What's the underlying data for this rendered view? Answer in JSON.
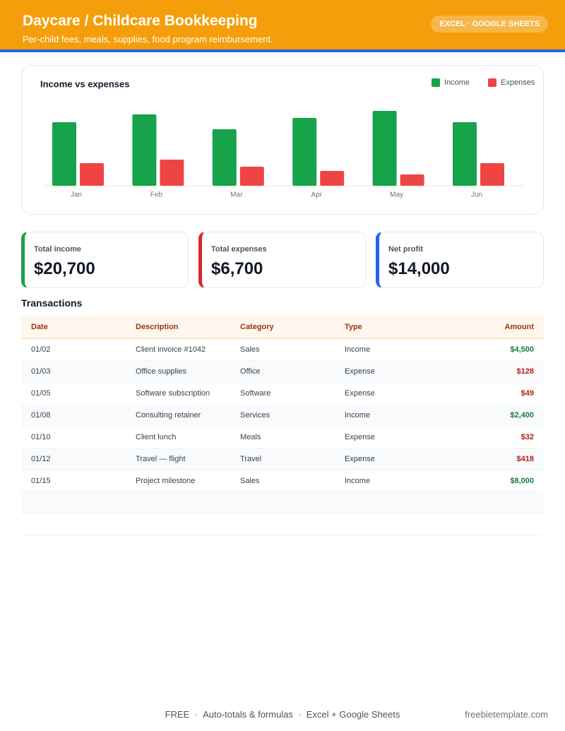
{
  "header": {
    "title": "Daycare / Childcare Bookkeeping",
    "subtitle": "Per-child fees, meals, supplies, food program reimbursement.",
    "badge": "EXCEL · GOOGLE SHEETS"
  },
  "chart_data": {
    "type": "bar",
    "title": "Income vs expenses",
    "categories": [
      "Jan",
      "Feb",
      "Mar",
      "Apr",
      "May",
      "Jun"
    ],
    "series": [
      {
        "name": "Income",
        "color": "#16a34a",
        "values": [
          90,
          101,
          80,
          96,
          106,
          90
        ]
      },
      {
        "name": "Expenses",
        "color": "#ef4444",
        "values": [
          32,
          37,
          27,
          21,
          16,
          32
        ]
      }
    ],
    "ylim": [
      0,
      110
    ],
    "legend": "top-right"
  },
  "summary": [
    {
      "label": "Total income",
      "value": "$20,700"
    },
    {
      "label": "Total expenses",
      "value": "$6,700"
    },
    {
      "label": "Net profit",
      "value": "$14,000"
    }
  ],
  "transactions": {
    "title": "Transactions",
    "columns": [
      "Date",
      "Description",
      "Category",
      "Type",
      "Amount"
    ],
    "rows": [
      [
        "01/02",
        "Client invoice #1042",
        "Sales",
        "Income",
        "$4,500"
      ],
      [
        "01/03",
        "Office supplies",
        "Office",
        "Expense",
        "$128"
      ],
      [
        "01/05",
        "Software subscription",
        "Software",
        "Expense",
        "$49"
      ],
      [
        "01/08",
        "Consulting retainer",
        "Services",
        "Income",
        "$2,400"
      ],
      [
        "01/10",
        "Client lunch",
        "Meals",
        "Expense",
        "$32"
      ],
      [
        "01/12",
        "Travel — flight",
        "Travel",
        "Expense",
        "$418"
      ],
      [
        "01/15",
        "Project milestone",
        "Sales",
        "Income",
        "$8,000"
      ]
    ]
  },
  "footer": {
    "items": [
      "FREE",
      "Auto-totals & formulas",
      "Excel + Google Sheets"
    ],
    "site": "freebietemplate.com"
  }
}
